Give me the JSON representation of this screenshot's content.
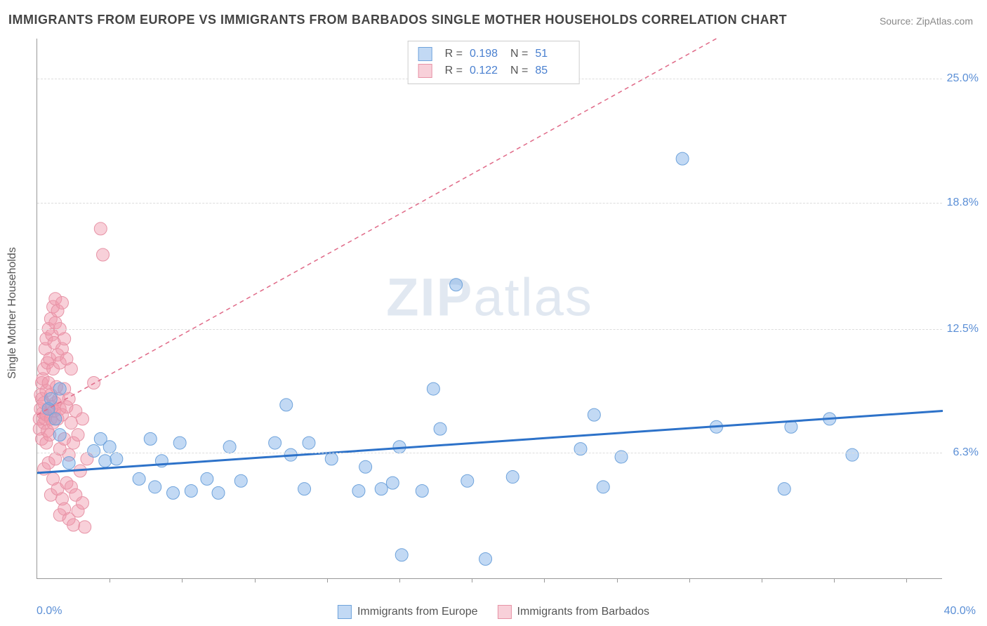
{
  "title": "IMMIGRANTS FROM EUROPE VS IMMIGRANTS FROM BARBADOS SINGLE MOTHER HOUSEHOLDS CORRELATION CHART",
  "source": "Source: ZipAtlas.com",
  "ylabel": "Single Mother Households",
  "watermark_a": "ZIP",
  "watermark_b": "atlas",
  "chart": {
    "type": "scatter",
    "xlim": [
      0,
      40
    ],
    "ylim": [
      0,
      27
    ],
    "x_tick_min": "0.0%",
    "x_tick_max": "40.0%",
    "y_ticks": [
      {
        "v": 6.3,
        "label": "6.3%"
      },
      {
        "v": 12.5,
        "label": "12.5%"
      },
      {
        "v": 18.8,
        "label": "18.8%"
      },
      {
        "v": 25.0,
        "label": "25.0%"
      }
    ],
    "x_tick_positions_pct": [
      8,
      16,
      24,
      32,
      40,
      48,
      56,
      64,
      72,
      80,
      88,
      96
    ],
    "grid_color": "#dddddd",
    "axis_color": "#999999",
    "background": "#ffffff",
    "series": [
      {
        "name": "Immigrants from Europe",
        "fill": "rgba(120,170,230,0.45)",
        "stroke": "#6fa3db",
        "trend_color": "#2d72c9",
        "trend_dash": "none",
        "trend_width": 3,
        "r_label": "R =",
        "r_value": "0.198",
        "n_label": "N =",
        "n_value": "51",
        "trend": {
          "x1": 0,
          "y1": 5.3,
          "x2": 40,
          "y2": 8.4
        },
        "marker_r": 9,
        "points": [
          [
            0.5,
            8.5
          ],
          [
            0.6,
            9.0
          ],
          [
            0.8,
            8.0
          ],
          [
            1.0,
            7.2
          ],
          [
            1.0,
            9.5
          ],
          [
            1.4,
            5.8
          ],
          [
            2.5,
            6.4
          ],
          [
            2.8,
            7.0
          ],
          [
            3.0,
            5.9
          ],
          [
            3.2,
            6.6
          ],
          [
            3.5,
            6.0
          ],
          [
            4.5,
            5.0
          ],
          [
            5.0,
            7.0
          ],
          [
            5.2,
            4.6
          ],
          [
            5.5,
            5.9
          ],
          [
            6.0,
            4.3
          ],
          [
            6.3,
            6.8
          ],
          [
            6.8,
            4.4
          ],
          [
            7.5,
            5.0
          ],
          [
            8.0,
            4.3
          ],
          [
            8.5,
            6.6
          ],
          [
            9.0,
            4.9
          ],
          [
            10.5,
            6.8
          ],
          [
            11.0,
            8.7
          ],
          [
            11.2,
            6.2
          ],
          [
            11.8,
            4.5
          ],
          [
            12.0,
            6.8
          ],
          [
            13.0,
            6.0
          ],
          [
            14.2,
            4.4
          ],
          [
            14.5,
            5.6
          ],
          [
            15.2,
            4.5
          ],
          [
            15.7,
            4.8
          ],
          [
            16.0,
            6.6
          ],
          [
            16.1,
            1.2
          ],
          [
            17.0,
            4.4
          ],
          [
            17.5,
            9.5
          ],
          [
            17.8,
            7.5
          ],
          [
            18.5,
            14.7
          ],
          [
            19.0,
            4.9
          ],
          [
            19.8,
            1.0
          ],
          [
            21.0,
            5.1
          ],
          [
            24.0,
            6.5
          ],
          [
            24.6,
            8.2
          ],
          [
            25.0,
            4.6
          ],
          [
            25.8,
            6.1
          ],
          [
            28.5,
            21.0
          ],
          [
            30.0,
            7.6
          ],
          [
            33.0,
            4.5
          ],
          [
            33.3,
            7.6
          ],
          [
            35.0,
            8.0
          ],
          [
            36.0,
            6.2
          ]
        ]
      },
      {
        "name": "Immigrants from Barbados",
        "fill": "rgba(240,150,170,0.45)",
        "stroke": "#e793a6",
        "trend_color": "#e06a88",
        "trend_dash": "6,5",
        "trend_width": 1.5,
        "r_label": "R =",
        "r_value": "0.122",
        "n_label": "N =",
        "n_value": "85",
        "trend": {
          "x1": 0,
          "y1": 8.2,
          "x2": 30,
          "y2": 27
        },
        "marker_r": 9,
        "points": [
          [
            0.1,
            7.5
          ],
          [
            0.1,
            8.0
          ],
          [
            0.15,
            8.5
          ],
          [
            0.15,
            9.2
          ],
          [
            0.2,
            7.0
          ],
          [
            0.2,
            9.0
          ],
          [
            0.2,
            9.8
          ],
          [
            0.25,
            8.3
          ],
          [
            0.25,
            10.0
          ],
          [
            0.3,
            5.5
          ],
          [
            0.3,
            7.8
          ],
          [
            0.3,
            8.8
          ],
          [
            0.3,
            10.5
          ],
          [
            0.35,
            8.0
          ],
          [
            0.35,
            11.5
          ],
          [
            0.4,
            6.8
          ],
          [
            0.4,
            8.2
          ],
          [
            0.4,
            9.4
          ],
          [
            0.4,
            12.0
          ],
          [
            0.45,
            7.4
          ],
          [
            0.45,
            10.8
          ],
          [
            0.5,
            5.8
          ],
          [
            0.5,
            8.5
          ],
          [
            0.5,
            9.8
          ],
          [
            0.5,
            12.5
          ],
          [
            0.55,
            7.2
          ],
          [
            0.55,
            11.0
          ],
          [
            0.6,
            4.2
          ],
          [
            0.6,
            8.0
          ],
          [
            0.6,
            9.2
          ],
          [
            0.6,
            13.0
          ],
          [
            0.65,
            8.6
          ],
          [
            0.65,
            12.2
          ],
          [
            0.7,
            5.0
          ],
          [
            0.7,
            7.8
          ],
          [
            0.7,
            10.5
          ],
          [
            0.7,
            13.6
          ],
          [
            0.75,
            8.4
          ],
          [
            0.75,
            11.8
          ],
          [
            0.8,
            6.0
          ],
          [
            0.8,
            8.8
          ],
          [
            0.8,
            12.8
          ],
          [
            0.8,
            14.0
          ],
          [
            0.85,
            9.6
          ],
          [
            0.9,
            4.5
          ],
          [
            0.9,
            8.0
          ],
          [
            0.9,
            11.2
          ],
          [
            0.9,
            13.4
          ],
          [
            0.95,
            9.0
          ],
          [
            1.0,
            3.2
          ],
          [
            1.0,
            6.5
          ],
          [
            1.0,
            8.5
          ],
          [
            1.0,
            10.8
          ],
          [
            1.0,
            12.5
          ],
          [
            1.1,
            4.0
          ],
          [
            1.1,
            8.2
          ],
          [
            1.1,
            11.5
          ],
          [
            1.1,
            13.8
          ],
          [
            1.2,
            3.5
          ],
          [
            1.2,
            7.0
          ],
          [
            1.2,
            9.5
          ],
          [
            1.2,
            12.0
          ],
          [
            1.3,
            4.8
          ],
          [
            1.3,
            8.6
          ],
          [
            1.3,
            11.0
          ],
          [
            1.4,
            3.0
          ],
          [
            1.4,
            6.2
          ],
          [
            1.4,
            9.0
          ],
          [
            1.5,
            4.6
          ],
          [
            1.5,
            7.8
          ],
          [
            1.5,
            10.5
          ],
          [
            1.6,
            2.7
          ],
          [
            1.6,
            6.8
          ],
          [
            1.7,
            4.2
          ],
          [
            1.7,
            8.4
          ],
          [
            1.8,
            3.4
          ],
          [
            1.8,
            7.2
          ],
          [
            1.9,
            5.4
          ],
          [
            2.0,
            3.8
          ],
          [
            2.0,
            8.0
          ],
          [
            2.1,
            2.6
          ],
          [
            2.2,
            6.0
          ],
          [
            2.8,
            17.5
          ],
          [
            2.9,
            16.2
          ],
          [
            2.5,
            9.8
          ]
        ]
      }
    ]
  }
}
